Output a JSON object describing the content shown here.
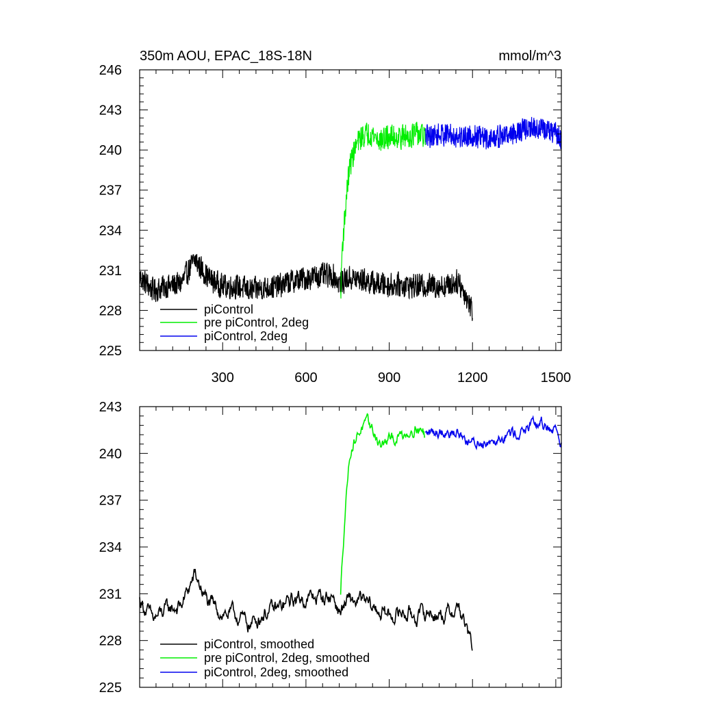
{
  "chart_data": [
    {
      "type": "line",
      "title": "350m AOU, EPAC_18S-18N",
      "units": "mmol/m^3",
      "xlabel": "",
      "ylabel": "",
      "xlim": [
        1,
        1520
      ],
      "ylim": [
        225,
        246
      ],
      "xticks": [
        300,
        600,
        900,
        1200,
        1500
      ],
      "xtick_labels": [
        "300",
        "600",
        "900",
        "1200",
        "1500"
      ],
      "yticks": [
        225,
        228,
        231,
        234,
        237,
        240,
        243,
        246
      ],
      "ytick_labels": [
        "225",
        "228",
        "231",
        "234",
        "237",
        "240",
        "243",
        "246"
      ],
      "grid": false,
      "legend_position": "bottom-left",
      "series": [
        {
          "name": "piControl",
          "color": "#000000",
          "x": [
            1,
            50,
            100,
            150,
            200,
            250,
            300,
            350,
            400,
            450,
            500,
            550,
            600,
            650,
            700,
            720,
            750,
            800,
            850,
            900,
            950,
            1000,
            1050,
            1100,
            1150,
            1200
          ],
          "y": [
            230.5,
            229.5,
            229.8,
            230.0,
            231.8,
            230.4,
            229.8,
            229.8,
            229.5,
            229.7,
            229.8,
            230.2,
            230.4,
            230.6,
            230.6,
            230.0,
            230.4,
            230.3,
            230.0,
            229.9,
            229.9,
            229.8,
            229.9,
            229.8,
            230.2,
            228.0
          ],
          "noise": 0.9
        },
        {
          "name": "pre piControl, 2deg",
          "color": "#00ee00",
          "x": [
            725,
            730,
            740,
            750,
            760,
            780,
            800,
            830,
            870,
            900,
            950,
            1000,
            1030
          ],
          "y": [
            229.0,
            232.5,
            235.0,
            237.5,
            239.0,
            240.3,
            241.0,
            241.3,
            240.7,
            241.0,
            241.0,
            241.2,
            241.0
          ],
          "noise": 0.9
        },
        {
          "name": "piControl, 2deg",
          "color": "#0000ee",
          "x": [
            1030,
            1100,
            1150,
            1200,
            1250,
            1300,
            1350,
            1400,
            1450,
            1500,
            1520
          ],
          "y": [
            241.0,
            241.2,
            241.0,
            241.1,
            240.8,
            241.0,
            241.3,
            241.6,
            241.6,
            241.2,
            240.9
          ],
          "noise": 0.85
        }
      ]
    },
    {
      "type": "line",
      "title": "",
      "xlabel": "",
      "ylabel": "",
      "xlim": [
        1,
        1520
      ],
      "ylim": [
        225,
        243
      ],
      "xticks": [
        300,
        600,
        900,
        1200,
        1500
      ],
      "xtick_labels": [],
      "yticks": [
        225,
        228,
        231,
        234,
        237,
        240,
        243
      ],
      "ytick_labels": [
        "225",
        "228",
        "231",
        "234",
        "237",
        "240",
        "243"
      ],
      "grid": false,
      "legend_position": "bottom-left",
      "series": [
        {
          "name": "piControl, smoothed",
          "color": "#000000",
          "x": [
            1,
            50,
            100,
            150,
            200,
            250,
            300,
            350,
            400,
            450,
            500,
            550,
            600,
            650,
            700,
            720,
            750,
            800,
            850,
            900,
            950,
            1000,
            1050,
            1100,
            1150,
            1200
          ],
          "y": [
            230.6,
            229.3,
            230.0,
            230.2,
            232.2,
            230.3,
            229.8,
            229.6,
            229.0,
            229.8,
            230.0,
            230.6,
            230.7,
            230.8,
            230.8,
            229.8,
            230.5,
            230.5,
            230.0,
            229.6,
            229.8,
            229.6,
            229.8,
            229.6,
            230.2,
            227.5
          ],
          "noise": 0.6
        },
        {
          "name": "pre piControl, 2deg, smoothed",
          "color": "#00ee00",
          "x": [
            725,
            730,
            740,
            750,
            760,
            780,
            800,
            830,
            870,
            900,
            950,
            1000,
            1030
          ],
          "y": [
            230.8,
            233.0,
            236.0,
            238.5,
            240.2,
            241.0,
            241.7,
            241.8,
            240.5,
            240.8,
            241.2,
            241.8,
            241.2
          ],
          "noise": 0.45
        },
        {
          "name": "piControl, 2deg, smoothed",
          "color": "#0000ee",
          "x": [
            1030,
            1100,
            1150,
            1200,
            1250,
            1300,
            1350,
            1400,
            1450,
            1500,
            1520
          ],
          "y": [
            241.2,
            241.5,
            241.3,
            240.6,
            240.8,
            241.2,
            241.3,
            241.6,
            241.9,
            241.5,
            240.8
          ],
          "noise": 0.45
        }
      ]
    }
  ]
}
